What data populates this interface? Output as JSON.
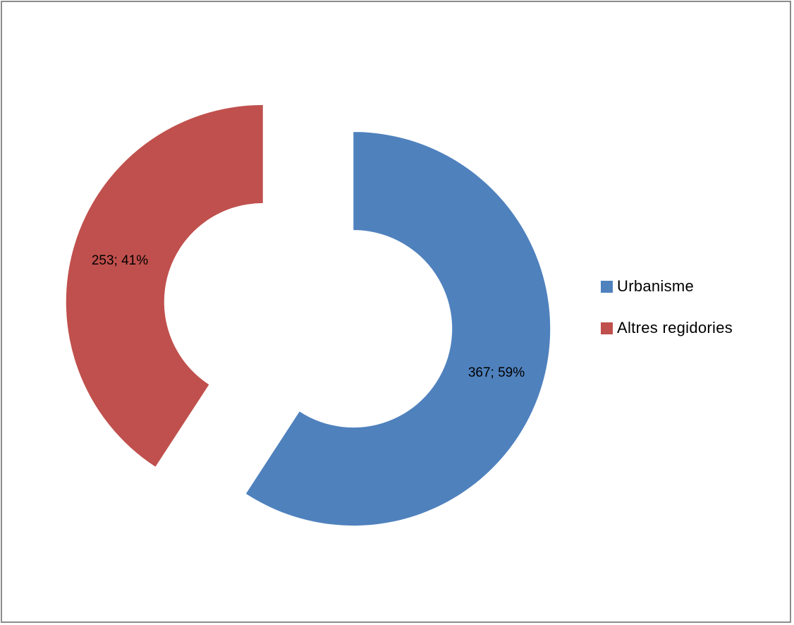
{
  "chart_data": {
    "type": "pie",
    "variant": "exploded-donut",
    "title": "",
    "categories": [
      "Urbanisme",
      "Altres regidories"
    ],
    "values": [
      367,
      253
    ],
    "percentages": [
      59,
      41
    ],
    "colors": [
      "#4f81bd",
      "#c0504d"
    ],
    "data_labels": [
      "367; 59%",
      "253; 41%"
    ],
    "legend": {
      "position": "right",
      "entries": [
        "Urbanisme",
        "Altres regidories"
      ]
    }
  }
}
